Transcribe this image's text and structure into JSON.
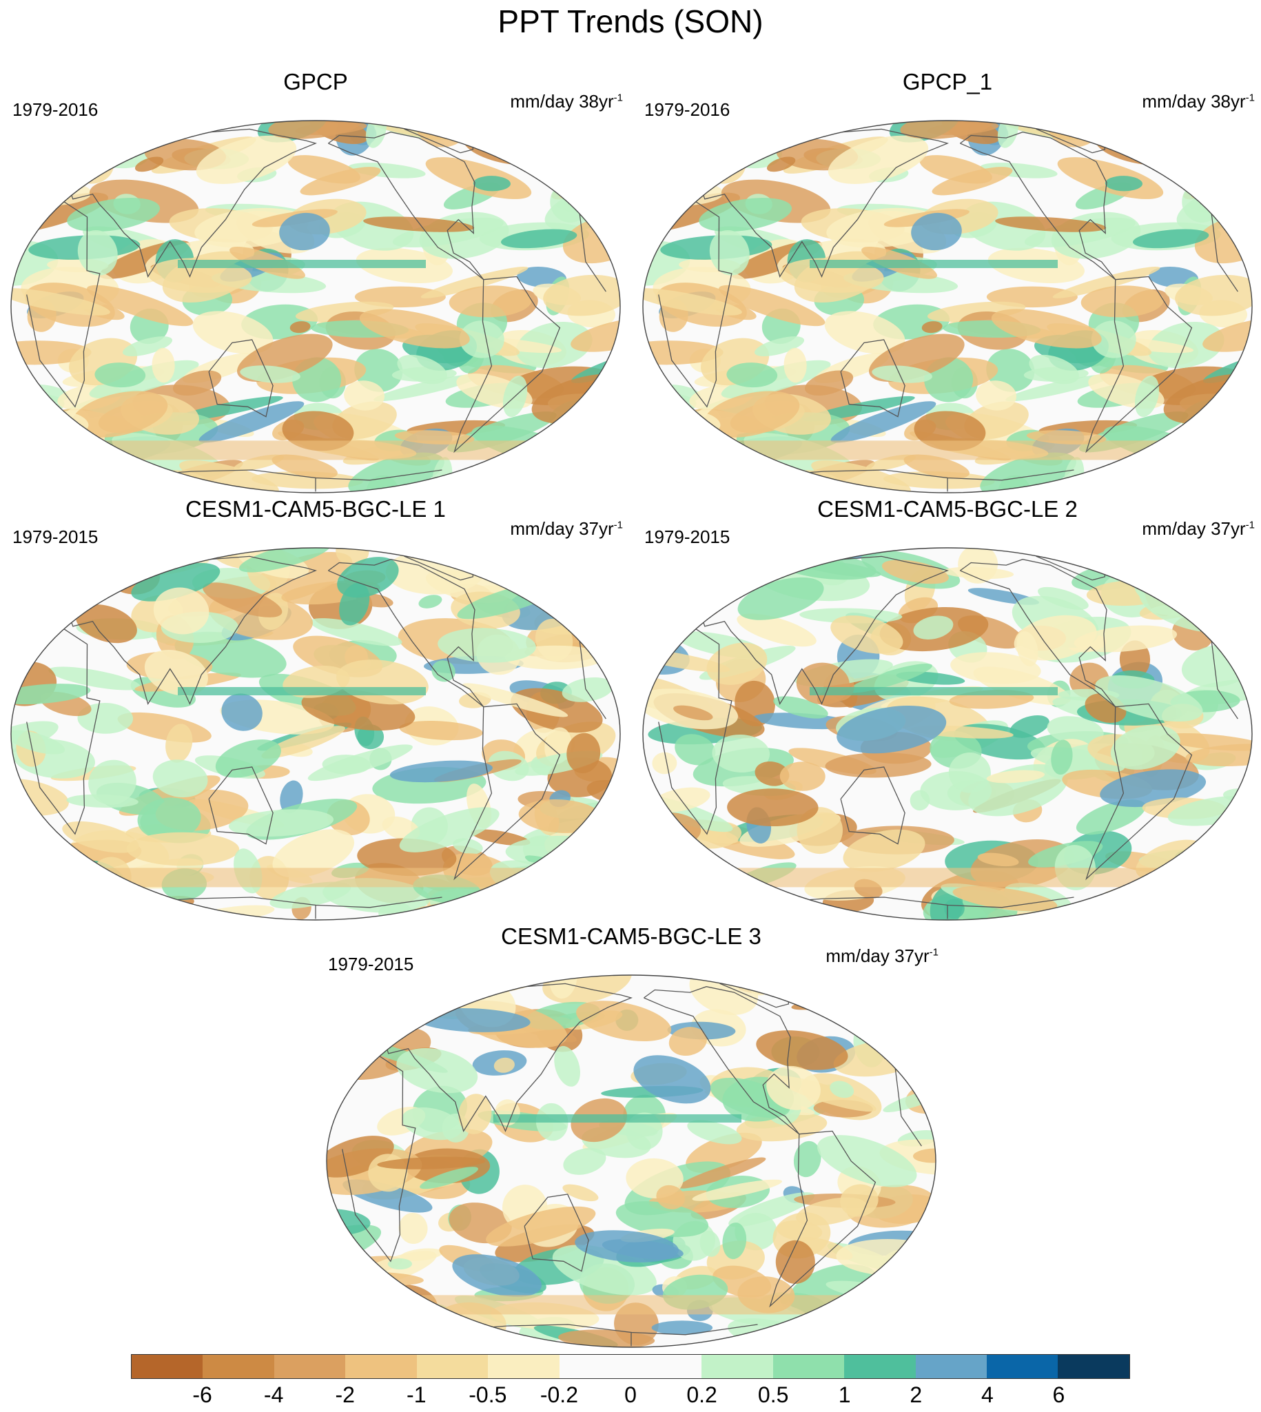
{
  "title": "PPT Trends (SON)",
  "panels": [
    {
      "title": "GPCP",
      "period": "1979-2016",
      "units": "mm/day 38yr",
      "units_sup": "-1"
    },
    {
      "title": "GPCP_1",
      "period": "1979-2016",
      "units": "mm/day 38yr",
      "units_sup": "-1"
    },
    {
      "title": "CESM1-CAM5-BGC-LE 1",
      "period": "1979-2015",
      "units": "mm/day 37yr",
      "units_sup": "-1"
    },
    {
      "title": "CESM1-CAM5-BGC-LE 2",
      "period": "1979-2015",
      "units": "mm/day 37yr",
      "units_sup": "-1"
    },
    {
      "title": "CESM1-CAM5-BGC-LE 3",
      "period": "1979-2015",
      "units": "mm/day 37yr",
      "units_sup": "-1"
    }
  ],
  "colorbar": {
    "labels": [
      "-6",
      "-4",
      "-2",
      "-1",
      "-0.5",
      "-0.2",
      "0",
      "0.2",
      "0.5",
      "1",
      "2",
      "4",
      "6"
    ],
    "colors": [
      "#b5662a",
      "#cd8a44",
      "#dba060",
      "#eec27f",
      "#f4dc9d",
      "#faeec0",
      "#fafafa",
      "#fafafa",
      "#c2f2c8",
      "#8fe0ac",
      "#4fbf9c",
      "#66a4c8",
      "#0a66a8",
      "#0a3a5e"
    ]
  }
}
